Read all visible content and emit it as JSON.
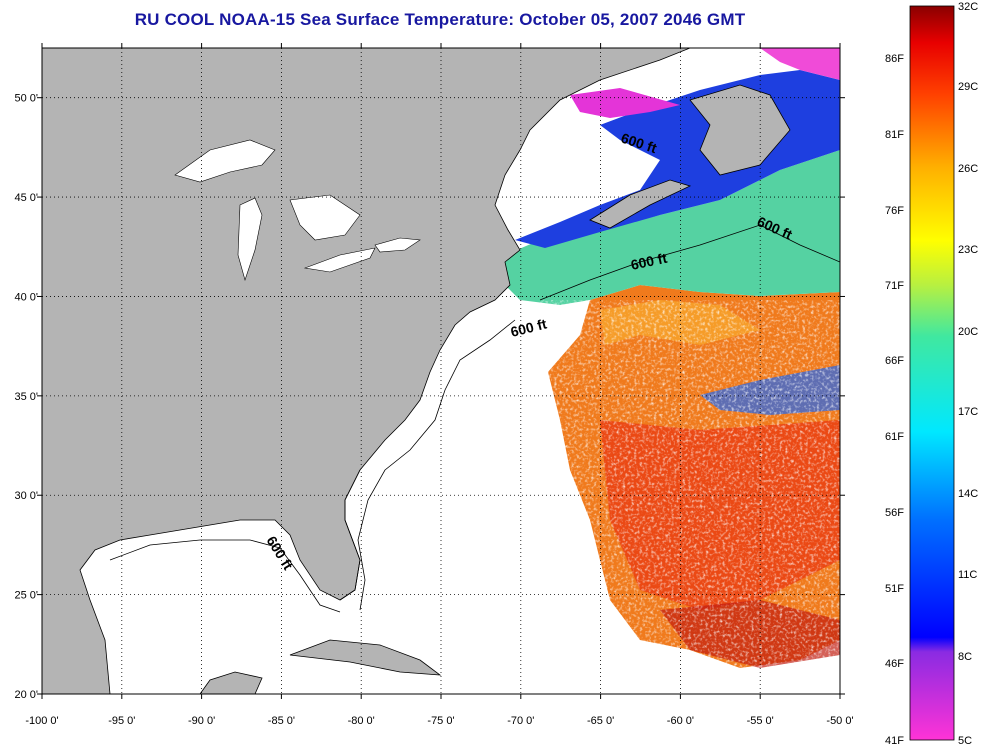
{
  "title": "RU COOL  NOAA-15  Sea Surface Temperature:  October 05, 2007 2046 GMT",
  "map": {
    "lon_ticks": [
      "-100 0'",
      "-95 0'",
      "-90 0'",
      "-85 0'",
      "-80 0'",
      "-75 0'",
      "-70 0'",
      "-65 0'",
      "-60 0'",
      "-55 0'",
      "-50 0'"
    ],
    "lat_ticks": [
      "20 0'",
      "25 0'",
      "30 0'",
      "35 0'",
      "40 0'",
      "45 0'",
      "50 0'"
    ],
    "lon_range": [
      -100,
      -50
    ],
    "lat_range": [
      20,
      52.5
    ],
    "grid": "dotted",
    "contour_label": "600 ft",
    "land_color": "#b4b4b4",
    "cloud_color": "#ffffff"
  },
  "colorbar": {
    "fahrenheit_labels": [
      "86F",
      "81F",
      "76F",
      "71F",
      "66F",
      "61F",
      "56F",
      "51F",
      "46F",
      "41F"
    ],
    "celsius_labels": [
      "32C",
      "29C",
      "26C",
      "23C",
      "20C",
      "17C",
      "14C",
      "11C",
      "8C",
      "5C"
    ]
  }
}
